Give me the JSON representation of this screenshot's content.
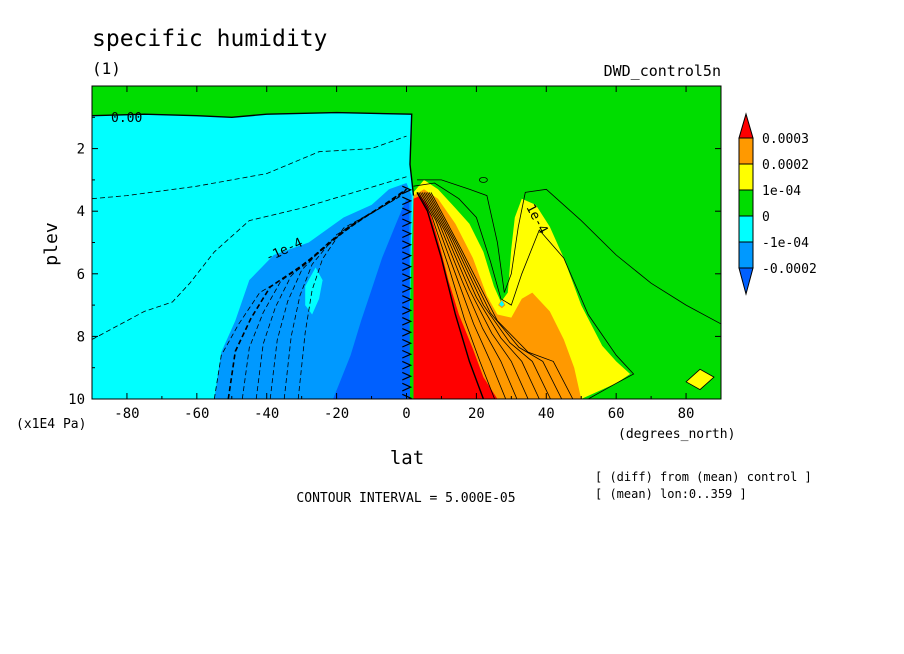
{
  "chart_data": {
    "type": "heatmap",
    "title": "specific humidity",
    "panel_label": "(1)",
    "experiment": "DWD_control5n",
    "xlabel": "lat",
    "x_units": "(degrees_north)",
    "ylabel": "plev",
    "y_units": "(x1E4 Pa)",
    "xlim": [
      -90,
      90
    ],
    "ylim": [
      10,
      0
    ],
    "y_axis_inverted": true,
    "x_ticks": [
      -80,
      -60,
      -40,
      -20,
      0,
      20,
      40,
      60,
      80
    ],
    "y_ticks": [
      2,
      4,
      6,
      8,
      10
    ],
    "contour_interval_text": "CONTOUR INTERVAL = 5.000E-05",
    "contour_labels": [
      "0.00",
      "-1e-4",
      "1e-4"
    ],
    "notes": [
      "[ (diff) from (mean) control ]",
      "[ (mean) lon:0..359 ]"
    ],
    "colorbar": {
      "levels": [
        "0.0003",
        "0.0002",
        "1e-04",
        "0",
        "-1e-04",
        "-0.0002"
      ],
      "colors": [
        "#ff0000",
        "#ff9900",
        "#ffff00",
        "#00dd00",
        "#00ffff",
        "#0099ff",
        "#0060ff"
      ]
    },
    "regions": [
      {
        "name": "zero",
        "value": 0,
        "color": "#00dd00"
      },
      {
        "name": "weak-negative",
        "value": -0.0001,
        "color": "#00ffff"
      },
      {
        "name": "mid-negative",
        "value": -0.00015,
        "color": "#0099ff"
      },
      {
        "name": "strong-negative",
        "value": -0.0002,
        "color": "#0060ff"
      },
      {
        "name": "weak-positive",
        "value": 0.0001,
        "color": "#ffff00"
      },
      {
        "name": "mid-positive",
        "value": 0.0002,
        "color": "#ff9900"
      },
      {
        "name": "strong-positive",
        "value": 0.0003,
        "color": "#ff0000"
      }
    ]
  }
}
